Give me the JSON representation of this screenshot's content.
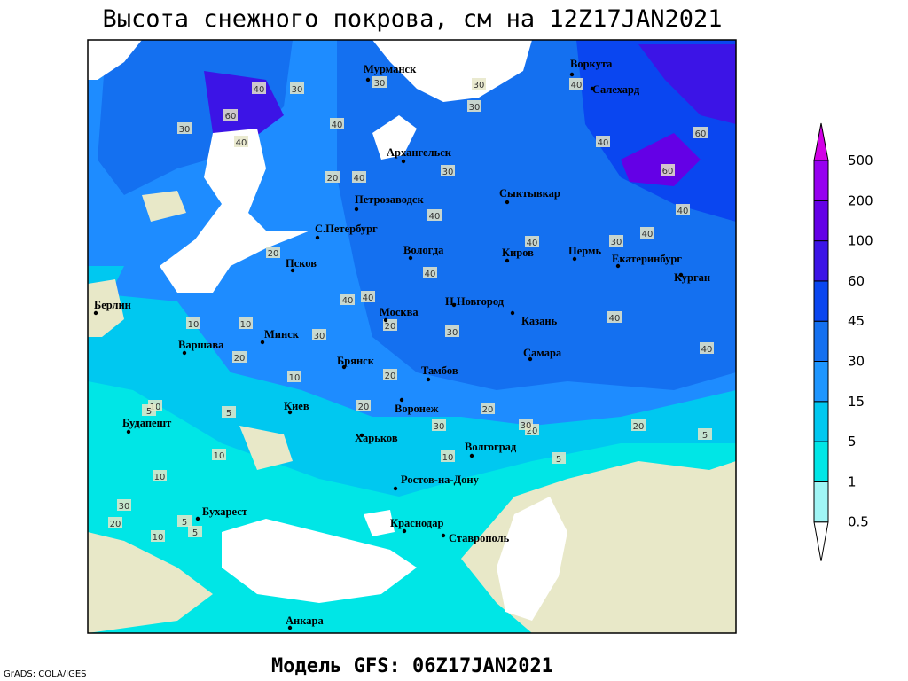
{
  "title": "Высота снежного покрова, см на 12Z17JAN2021",
  "footer": "Модель GFS: 06Z17JAN2021",
  "credit": "GrADS: COLA/IGES",
  "cities": [
    "Мурманск",
    "Воркута",
    "Салехард",
    "Архангельск",
    "Сыктывкар",
    "Петрозаводск",
    "С.Петербург",
    "Вологда",
    "Киров",
    "Пермь",
    "Екатеринбург",
    "Курган",
    "Псков",
    "Берлин",
    "Москва",
    "Н.Новгород",
    "Казань",
    "Минск",
    "Варшава",
    "Самара",
    "Брянск",
    "Тамбов",
    "Киев",
    "Воронеж",
    "Будапешт",
    "Харьков",
    "Волгоград",
    "Ростов-на-Дону",
    "Бухарест",
    "Краснодар",
    "Ставрополь",
    "Анкара"
  ],
  "contour_labels": [
    30,
    40,
    30,
    60,
    30,
    40,
    40,
    30,
    40,
    40,
    20,
    40,
    30,
    40,
    30,
    60,
    40,
    40,
    30,
    40,
    40,
    40,
    40,
    20,
    10,
    20,
    10,
    20,
    10,
    30,
    20,
    20,
    20,
    30,
    10,
    5,
    5,
    10,
    20,
    5,
    10,
    30,
    20,
    10,
    5,
    5,
    5,
    10,
    20,
    60,
    40,
    40,
    30,
    30
  ],
  "legend": {
    "levels": [
      0.5,
      1,
      5,
      15,
      30,
      45,
      60,
      100,
      200,
      500
    ],
    "colors": [
      "#ffffff",
      "#a0f5f5",
      "#00e6e6",
      "#00c8f0",
      "#1e96ff",
      "#1470f0",
      "#0a46f0",
      "#3c14e6",
      "#6400e6",
      "#9600f0",
      "#d200e6"
    ]
  }
}
